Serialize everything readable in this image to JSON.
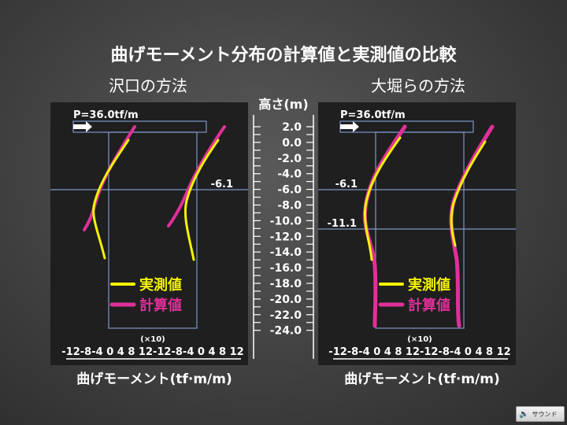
{
  "title": "曲げモーメント分布の計算値と実測値の比較",
  "left_panel": {
    "heading": "沢口の方法",
    "load": "P=36.0tf/m",
    "level_labels": [
      "-6.1"
    ],
    "legend": {
      "measured": "実測値",
      "calculated": "計算値"
    }
  },
  "right_panel": {
    "heading": "大堀らの方法",
    "load": "P=36.0tf/m",
    "level_labels": [
      "-6.1",
      "-11.1"
    ],
    "legend": {
      "measured": "実測値",
      "calculated": "計算値"
    }
  },
  "depth_axis": {
    "title": "高さ(m)",
    "ticks": [
      "2.0",
      "0.0",
      "-2.0",
      "-4.0",
      "-6.0",
      "-8.0",
      "-10.0",
      "-12.0",
      "-14.0",
      "-16.0",
      "-18.0",
      "-20.0",
      "-22.0",
      "-24.0"
    ]
  },
  "moment_axis": {
    "multiplier": "(×10)",
    "tick_labels": "-12-8-4 0 4 8 12-12-8-4 0 4 8 12",
    "title": "曲げモーメント(tf·m/m)"
  },
  "colors": {
    "measured": "#f5f500",
    "calculated": "#e0309a",
    "panel": "#1f1f1f",
    "guide": "#7f97c9"
  },
  "sound_button": {
    "label": "サウンド",
    "icon": "speaker-icon"
  }
}
